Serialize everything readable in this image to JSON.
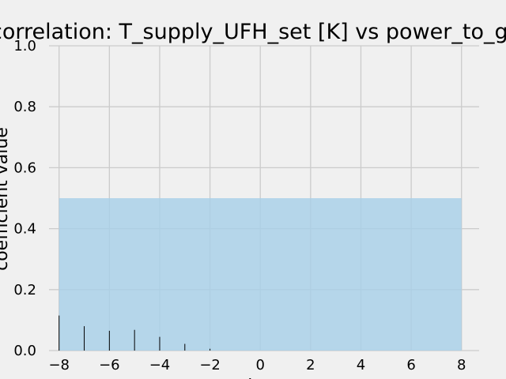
{
  "chart_data": {
    "type": "bar",
    "title": "Autocorrelation: T_supply_UFH_set [K] vs power_to_grid [W]",
    "xlabel": "lag",
    "ylabel": "coefficient value",
    "xlim": [
      -8.4,
      8.7
    ],
    "ylim": [
      0,
      1
    ],
    "x_ticks": [
      -8,
      -6,
      -4,
      -2,
      0,
      2,
      4,
      6,
      8
    ],
    "x_tick_labels": [
      "−8",
      "−6",
      "−4",
      "−2",
      "0",
      "2",
      "4",
      "6",
      "8"
    ],
    "y_ticks": [
      0,
      0.2,
      0.4,
      0.6,
      0.8,
      1.0
    ],
    "y_tick_labels": [
      "0.0",
      "0.2",
      "0.4",
      "0.6",
      "0.8",
      "1.0"
    ],
    "grid": true,
    "confidence_band": {
      "x_range": [
        -8,
        8
      ],
      "upper": 0.5,
      "lower": 0,
      "color": "#a6cfe8"
    },
    "lags": [
      -8,
      -7,
      -6,
      -5,
      -4,
      -3,
      -2
    ],
    "values": [
      0.115,
      0.08,
      0.065,
      0.068,
      0.045,
      0.022,
      0.006
    ],
    "bar_color": "#000000",
    "background_color": "#f0f0f0"
  }
}
